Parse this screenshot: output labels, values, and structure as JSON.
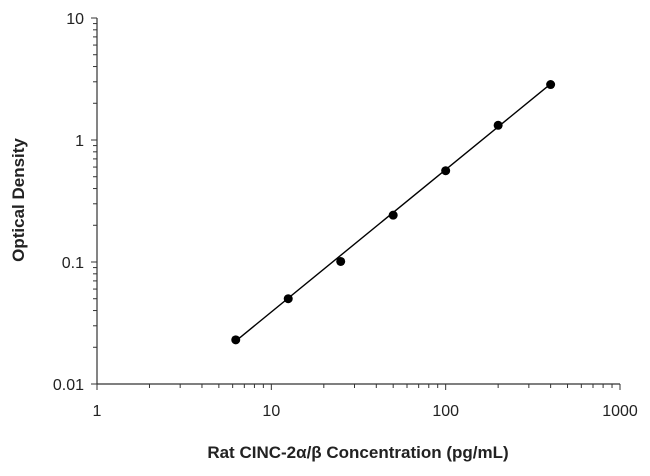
{
  "chart_data": {
    "type": "scatter",
    "title": "",
    "xlabel": "Rat CINC-2α/β Concentration (pg/mL)",
    "ylabel": "Optical Density",
    "x_scale": "log",
    "y_scale": "log",
    "xlim": [
      1,
      1000
    ],
    "ylim": [
      0.01,
      10
    ],
    "x_ticks": [
      "1",
      "10",
      "100",
      "1000"
    ],
    "y_ticks": [
      "0.01",
      "0.1",
      "1",
      "10"
    ],
    "grid": false,
    "legend": "none",
    "series": [
      {
        "x": [
          6.25,
          12.5,
          25,
          50,
          100,
          200,
          400
        ],
        "y": [
          0.023,
          0.05,
          0.101,
          0.242,
          0.56,
          1.32,
          2.85
        ]
      }
    ],
    "fit_line": {
      "x": [
        6.25,
        400
      ],
      "y": [
        0.0225,
        2.88
      ]
    },
    "colors": {
      "points": "#000000",
      "line": "#000000",
      "axis": "#333333"
    }
  }
}
